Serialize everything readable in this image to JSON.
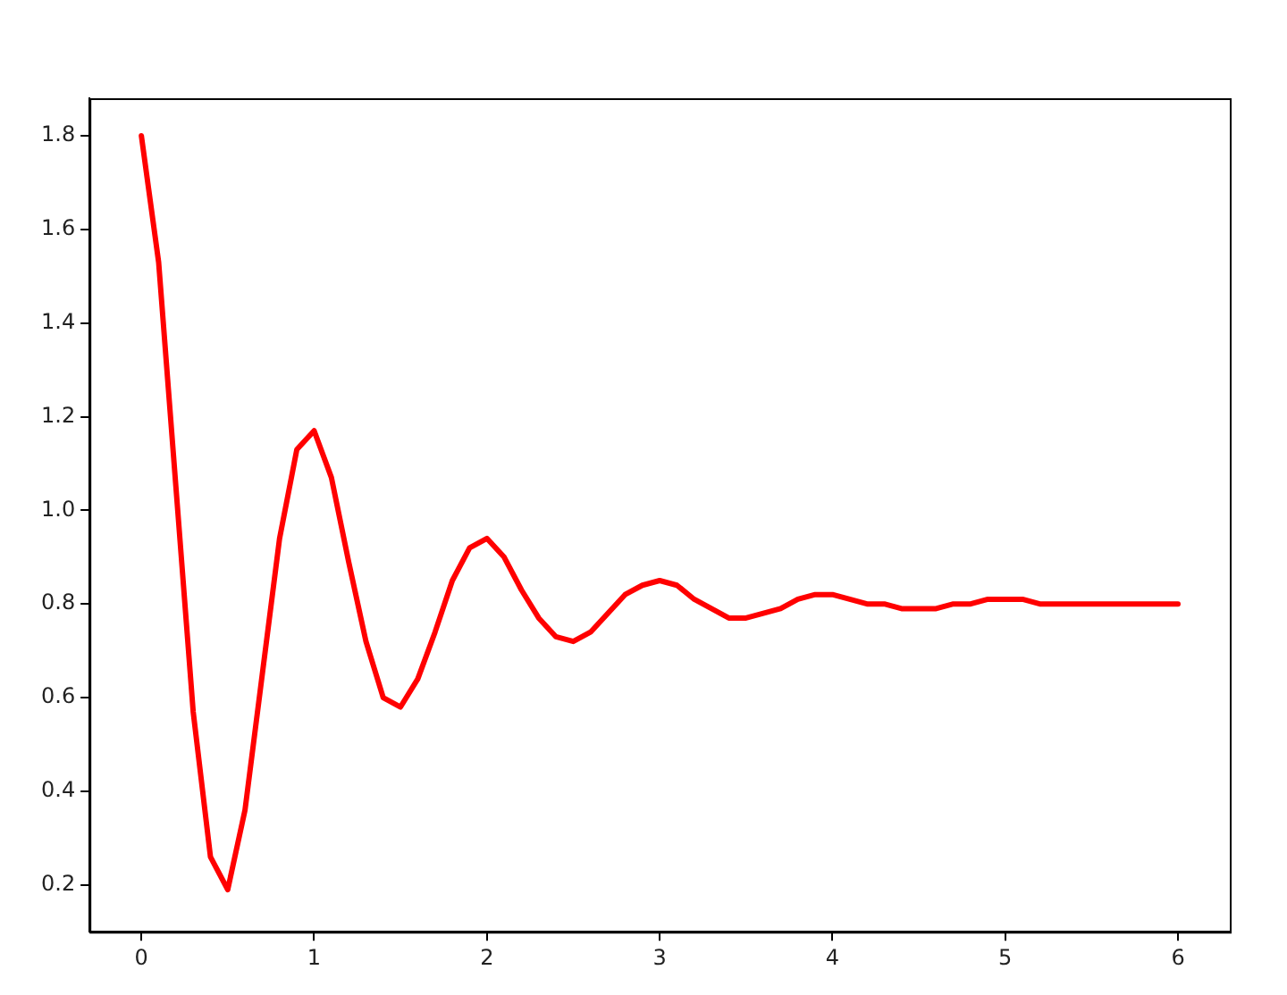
{
  "chart_data": {
    "type": "line",
    "x": [
      0,
      0.1,
      0.2,
      0.3,
      0.4,
      0.5,
      0.6,
      0.7,
      0.8,
      0.9,
      1,
      1.1,
      1.2,
      1.3,
      1.4,
      1.5,
      1.6,
      1.7,
      1.8,
      1.9,
      2,
      2.1,
      2.2,
      2.3,
      2.4,
      2.5,
      2.6,
      2.7,
      2.8,
      2.9,
      3,
      3.1,
      3.2,
      3.3,
      3.4,
      3.5,
      3.6,
      3.7,
      3.8,
      3.9,
      4,
      4.1,
      4.2,
      4.3,
      4.4,
      4.5,
      4.6,
      4.7,
      4.8,
      4.9,
      5,
      5.1,
      5.2,
      5.3,
      5.4,
      5.5,
      5.6,
      5.7,
      5.8,
      5.9,
      6
    ],
    "series": [
      {
        "color": "#ff0000",
        "values": [
          1.8,
          1.53,
          1.05,
          0.57,
          0.26,
          0.19,
          0.36,
          0.65,
          0.94,
          1.13,
          1.17,
          1.07,
          0.89,
          0.72,
          0.6,
          0.58,
          0.64,
          0.74,
          0.85,
          0.92,
          0.94,
          0.9,
          0.83,
          0.77,
          0.73,
          0.72,
          0.74,
          0.78,
          0.82,
          0.84,
          0.85,
          0.84,
          0.81,
          0.79,
          0.77,
          0.77,
          0.78,
          0.79,
          0.81,
          0.82,
          0.82,
          0.81,
          0.8,
          0.8,
          0.79,
          0.79,
          0.79,
          0.8,
          0.8,
          0.81,
          0.81,
          0.81,
          0.8,
          0.8,
          0.8,
          0.8,
          0.8,
          0.8,
          0.8,
          0.8,
          0.8
        ]
      }
    ],
    "xlim": [
      -0.3,
      6.3
    ],
    "xticks": [
      0,
      1,
      2,
      3,
      4,
      5,
      6
    ],
    "ylim": [
      0.1,
      1.88
    ],
    "yticks": [
      0.2,
      0.4,
      0.6,
      0.8,
      {
        "value": 1.0,
        "label": "1.0"
      },
      1.2,
      1.4,
      1.6,
      1.8
    ],
    "marker": "none",
    "line_style": "solid",
    "grid": false,
    "legend": false
  }
}
